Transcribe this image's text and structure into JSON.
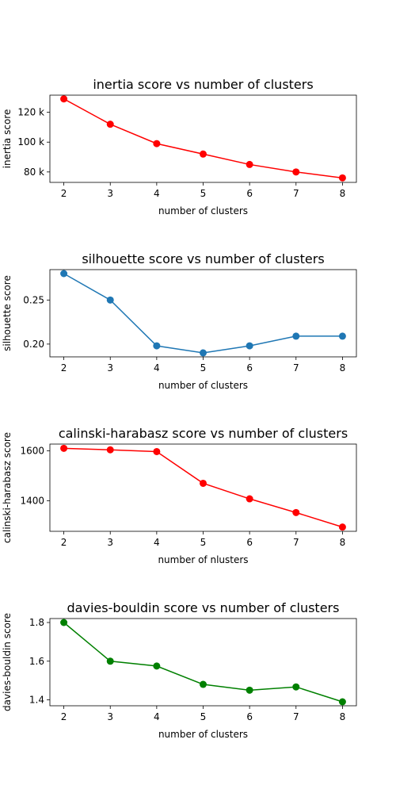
{
  "chart_data": [
    {
      "type": "line",
      "title": "inertia score vs number of clusters",
      "xlabel": "number of clusters",
      "ylabel": "inertia score",
      "x": [
        2,
        3,
        4,
        5,
        6,
        7,
        8
      ],
      "values": [
        129000,
        112000,
        99000,
        92000,
        85000,
        80000,
        76000
      ],
      "color": "#ff0000",
      "xlim": [
        1.7,
        8.3
      ],
      "ylim": [
        73000,
        131500
      ],
      "yticks": [
        80000,
        100000,
        120000
      ],
      "ytick_labels": [
        "80 k",
        "100 k",
        "120 k"
      ],
      "grid": false
    },
    {
      "type": "line",
      "title": "silhouette score vs number of clusters",
      "xlabel": "number of clusters",
      "ylabel": "silhouette score",
      "x": [
        2,
        3,
        4,
        5,
        6,
        7,
        8
      ],
      "values": [
        0.28,
        0.25,
        0.198,
        0.19,
        0.198,
        0.209,
        0.209
      ],
      "color": "#1f77b4",
      "xlim": [
        1.7,
        8.3
      ],
      "ylim": [
        0.1855,
        0.2845
      ],
      "yticks": [
        0.2,
        0.25
      ],
      "ytick_labels": [
        "0.20",
        "0.25"
      ],
      "grid": false
    },
    {
      "type": "line",
      "title": "calinski-harabasz score vs number of clusters",
      "xlabel": "number of nlusters",
      "ylabel": "calinski-harabasz score",
      "x": [
        2,
        3,
        4,
        5,
        6,
        7,
        8
      ],
      "values": [
        1610,
        1604,
        1597,
        1470,
        1408,
        1353,
        1295
      ],
      "color": "#ff0000",
      "xlim": [
        1.7,
        8.3
      ],
      "ylim": [
        1278,
        1627
      ],
      "yticks": [
        1400,
        1600
      ],
      "ytick_labels": [
        "1400",
        "1600"
      ],
      "grid": false
    },
    {
      "type": "line",
      "title": "davies-bouldin score vs number of clusters",
      "xlabel": "number of clusters",
      "ylabel": "davies-bouldin score",
      "x": [
        2,
        3,
        4,
        5,
        6,
        7,
        8
      ],
      "values": [
        1.8,
        1.6,
        1.575,
        1.48,
        1.45,
        1.467,
        1.39
      ],
      "color": "#008000",
      "xlim": [
        1.7,
        8.3
      ],
      "ylim": [
        1.3695,
        1.8205
      ],
      "yticks": [
        1.4,
        1.6,
        1.8
      ],
      "ytick_labels": [
        "1.4",
        "1.6",
        "1.8"
      ],
      "grid": false
    }
  ]
}
